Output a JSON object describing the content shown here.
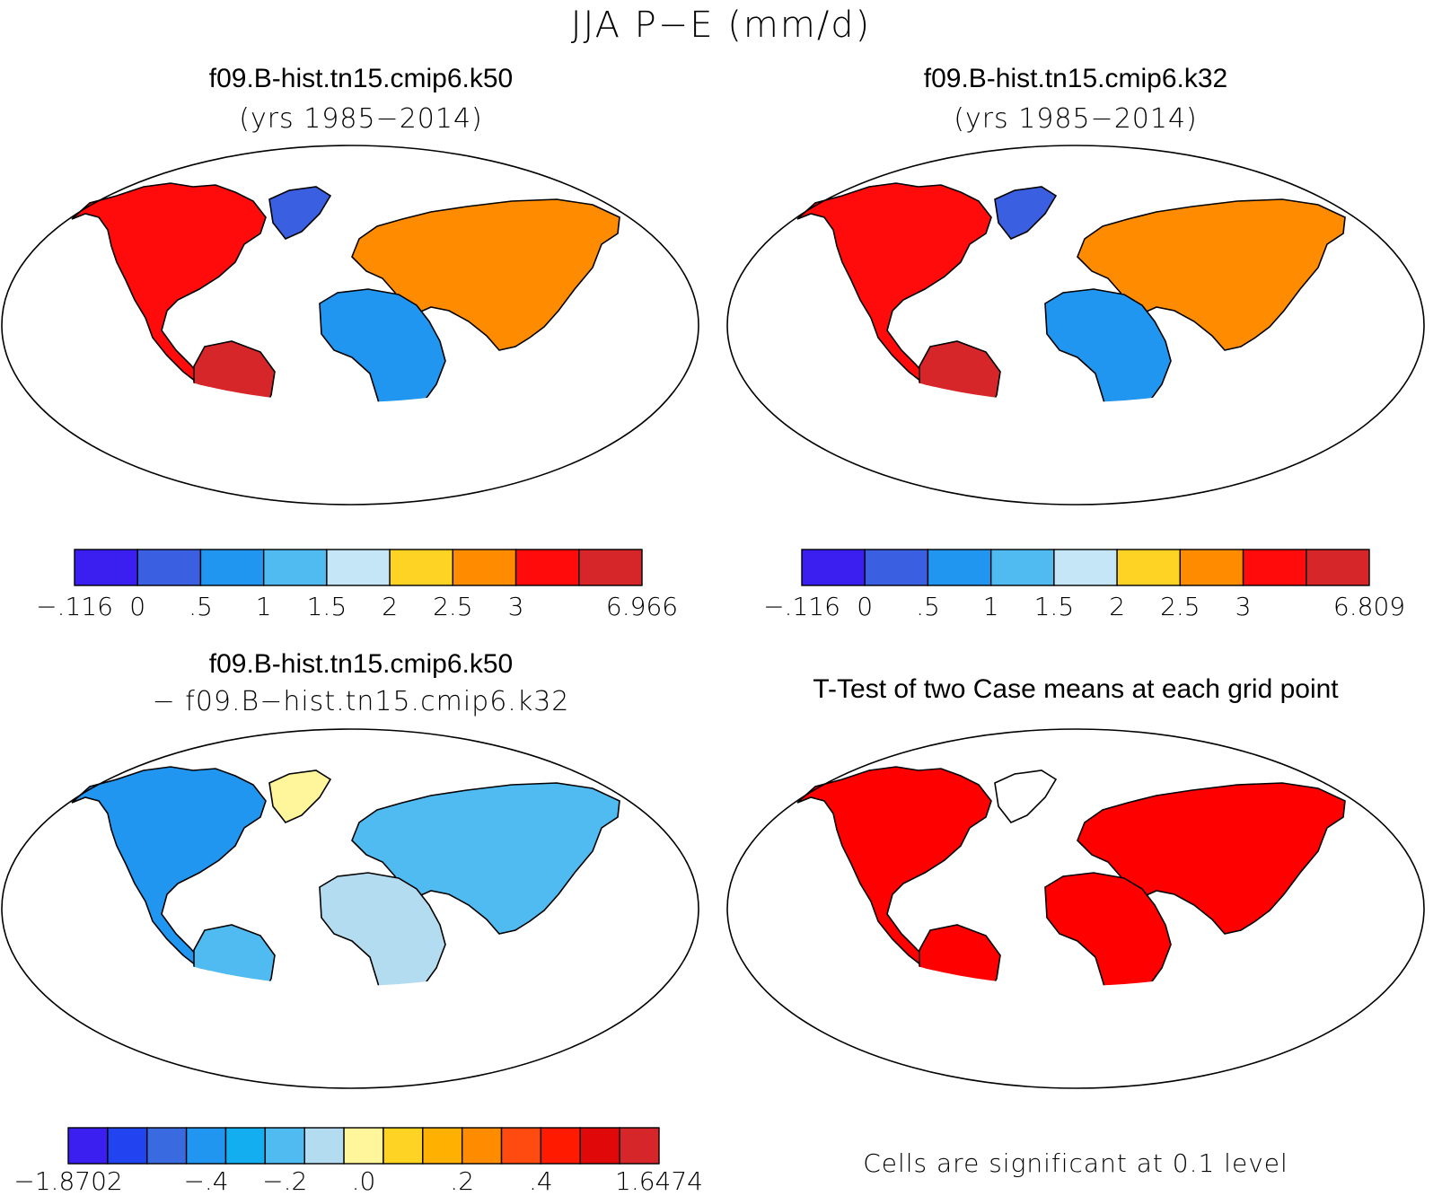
{
  "figure": {
    "title": "JJA P−E (mm/d)"
  },
  "panels": [
    {
      "title": "f09.B-hist.tn15.cmip6.k50",
      "subtitle": "(yrs 1985−2014)",
      "colorbar": {
        "colors": [
          "#3a1ff0",
          "#3a5fe0",
          "#2196f0",
          "#4fbbf0",
          "#c5e6f6",
          "#ffd324",
          "#ff8c00",
          "#ff0b0b",
          "#d7262a"
        ],
        "labels": [
          "−.116",
          "0",
          ".5",
          "1",
          "1.5",
          "2",
          "2.5",
          "3",
          "6.966"
        ]
      }
    },
    {
      "title": "f09.B-hist.tn15.cmip6.k32",
      "subtitle": "(yrs 1985−2014)",
      "colorbar": {
        "colors": [
          "#3a1ff0",
          "#3a5fe0",
          "#2196f0",
          "#4fbbf0",
          "#c5e6f6",
          "#ffd324",
          "#ff8c00",
          "#ff0b0b",
          "#d7262a"
        ],
        "labels": [
          "−.116",
          "0",
          ".5",
          "1",
          "1.5",
          "2",
          "2.5",
          "3",
          "6.809"
        ]
      }
    },
    {
      "title": "f09.B-hist.tn15.cmip6.k50",
      "subtitle": "− f09.B−hist.tn15.cmip6.k32",
      "colorbar": {
        "colors": [
          "#3a1ff0",
          "#2244f0",
          "#3a6ae0",
          "#2196f0",
          "#12aef0",
          "#4fbbf0",
          "#b4dcf0",
          "#fff59a",
          "#ffd324",
          "#ffb000",
          "#ff8c00",
          "#ff4a10",
          "#ff1a00",
          "#e00808",
          "#d7262a"
        ],
        "labels": [
          "−1.8702",
          "−.4",
          "−.2",
          ".0",
          ".2",
          ".4",
          "1.6474"
        ]
      }
    },
    {
      "title": "T-Test of two Case means at each grid point",
      "note": "Cells are significant at 0.1 level",
      "significant_color": "#ff0000"
    }
  ]
}
